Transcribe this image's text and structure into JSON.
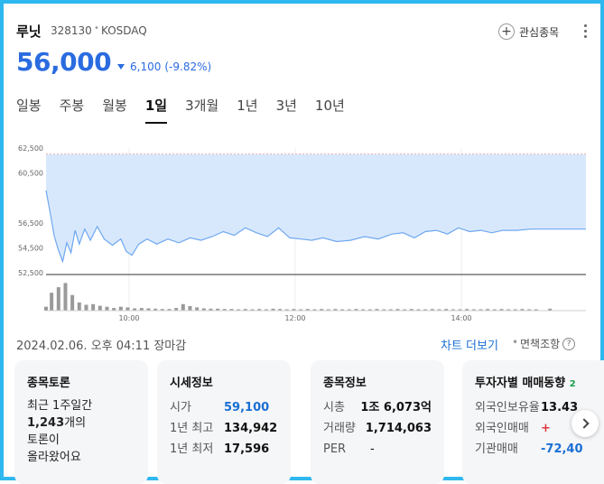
{
  "header": {
    "name": "루닛",
    "code": "328130",
    "separator": "•",
    "market": "KOSDAQ",
    "fav_label": "관심종목",
    "fav_icon": "plus-circle-icon",
    "more_icon": "more-vertical-icon"
  },
  "price": {
    "current": "56,000",
    "change": "6,100",
    "change_pct": "(-9.82%)",
    "direction": "down",
    "color": "#2a6be0"
  },
  "tabs": [
    {
      "label": "일봉",
      "active": false
    },
    {
      "label": "주봉",
      "active": false
    },
    {
      "label": "월봉",
      "active": false
    },
    {
      "label": "1일",
      "active": true
    },
    {
      "label": "3개월",
      "active": false
    },
    {
      "label": "1년",
      "active": false
    },
    {
      "label": "3년",
      "active": false
    },
    {
      "label": "10년",
      "active": false
    }
  ],
  "chart_data": {
    "type": "area",
    "y_ticks": [
      "62,500",
      "60,500",
      "56,500",
      "54,500",
      "52,500"
    ],
    "x_ticks": [
      "10:00",
      "12:00",
      "14:00"
    ],
    "ylim": [
      52500,
      62500
    ],
    "upper_limit": 62000,
    "xlim": [
      "09:00",
      "15:30"
    ],
    "line_color": "#6fa8f0",
    "fill_color": "#d8e8fc",
    "price_series": [
      {
        "t": 0,
        "p": 59100
      },
      {
        "t": 3,
        "p": 57300
      },
      {
        "t": 6,
        "p": 55400
      },
      {
        "t": 9,
        "p": 54300
      },
      {
        "t": 12,
        "p": 53400
      },
      {
        "t": 15,
        "p": 54900
      },
      {
        "t": 18,
        "p": 54100
      },
      {
        "t": 21,
        "p": 55900
      },
      {
        "t": 24,
        "p": 54800
      },
      {
        "t": 28,
        "p": 56000
      },
      {
        "t": 32,
        "p": 55100
      },
      {
        "t": 37,
        "p": 56200
      },
      {
        "t": 42,
        "p": 55200
      },
      {
        "t": 48,
        "p": 54700
      },
      {
        "t": 54,
        "p": 55200
      },
      {
        "t": 58,
        "p": 54200
      },
      {
        "t": 62,
        "p": 53900
      },
      {
        "t": 67,
        "p": 54800
      },
      {
        "t": 73,
        "p": 55200
      },
      {
        "t": 80,
        "p": 54800
      },
      {
        "t": 88,
        "p": 55200
      },
      {
        "t": 96,
        "p": 54900
      },
      {
        "t": 104,
        "p": 55300
      },
      {
        "t": 112,
        "p": 55100
      },
      {
        "t": 120,
        "p": 55400
      },
      {
        "t": 128,
        "p": 55800
      },
      {
        "t": 136,
        "p": 55500
      },
      {
        "t": 144,
        "p": 56100
      },
      {
        "t": 152,
        "p": 55700
      },
      {
        "t": 160,
        "p": 55400
      },
      {
        "t": 168,
        "p": 56100
      },
      {
        "t": 176,
        "p": 55300
      },
      {
        "t": 184,
        "p": 55200
      },
      {
        "t": 192,
        "p": 55100
      },
      {
        "t": 200,
        "p": 55300
      },
      {
        "t": 210,
        "p": 55000
      },
      {
        "t": 220,
        "p": 55100
      },
      {
        "t": 230,
        "p": 55400
      },
      {
        "t": 240,
        "p": 55200
      },
      {
        "t": 250,
        "p": 55600
      },
      {
        "t": 258,
        "p": 55700
      },
      {
        "t": 266,
        "p": 55300
      },
      {
        "t": 274,
        "p": 55800
      },
      {
        "t": 282,
        "p": 55900
      },
      {
        "t": 290,
        "p": 55600
      },
      {
        "t": 298,
        "p": 56100
      },
      {
        "t": 306,
        "p": 55800
      },
      {
        "t": 314,
        "p": 55900
      },
      {
        "t": 322,
        "p": 55700
      },
      {
        "t": 330,
        "p": 55900
      },
      {
        "t": 340,
        "p": 55900
      },
      {
        "t": 350,
        "p": 56000
      },
      {
        "t": 360,
        "p": 56000
      },
      {
        "t": 370,
        "p": 56000
      },
      {
        "t": 380,
        "p": 56000
      },
      {
        "t": 390,
        "p": 56000
      }
    ],
    "volume_series": [
      {
        "t": 0,
        "v": 0.12
      },
      {
        "t": 4,
        "v": 0.55
      },
      {
        "t": 9,
        "v": 0.72
      },
      {
        "t": 14,
        "v": 0.85
      },
      {
        "t": 19,
        "v": 0.48
      },
      {
        "t": 24,
        "v": 0.25
      },
      {
        "t": 29,
        "v": 0.18
      },
      {
        "t": 34,
        "v": 0.2
      },
      {
        "t": 39,
        "v": 0.15
      },
      {
        "t": 44,
        "v": 0.12
      },
      {
        "t": 49,
        "v": 0.08
      },
      {
        "t": 54,
        "v": 0.12
      },
      {
        "t": 59,
        "v": 0.1
      },
      {
        "t": 64,
        "v": 0.07
      },
      {
        "t": 69,
        "v": 0.08
      },
      {
        "t": 74,
        "v": 0.07
      },
      {
        "t": 79,
        "v": 0.06
      },
      {
        "t": 84,
        "v": 0.05
      },
      {
        "t": 89,
        "v": 0.05
      },
      {
        "t": 94,
        "v": 0.08
      },
      {
        "t": 99,
        "v": 0.2
      },
      {
        "t": 104,
        "v": 0.14
      },
      {
        "t": 109,
        "v": 0.1
      },
      {
        "t": 114,
        "v": 0.07
      },
      {
        "t": 119,
        "v": 0.06
      },
      {
        "t": 124,
        "v": 0.06
      },
      {
        "t": 129,
        "v": 0.05
      },
      {
        "t": 134,
        "v": 0.05
      },
      {
        "t": 139,
        "v": 0.04
      },
      {
        "t": 144,
        "v": 0.05
      },
      {
        "t": 149,
        "v": 0.04
      },
      {
        "t": 154,
        "v": 0.05
      },
      {
        "t": 159,
        "v": 0.04
      },
      {
        "t": 164,
        "v": 0.06
      },
      {
        "t": 169,
        "v": 0.05
      },
      {
        "t": 174,
        "v": 0.04
      },
      {
        "t": 179,
        "v": 0.05
      },
      {
        "t": 184,
        "v": 0.04
      },
      {
        "t": 189,
        "v": 0.05
      },
      {
        "t": 194,
        "v": 0.04
      },
      {
        "t": 199,
        "v": 0.05
      },
      {
        "t": 204,
        "v": 0.04
      },
      {
        "t": 209,
        "v": 0.05
      },
      {
        "t": 214,
        "v": 0.04
      },
      {
        "t": 219,
        "v": 0.04
      },
      {
        "t": 224,
        "v": 0.05
      },
      {
        "t": 229,
        "v": 0.04
      },
      {
        "t": 234,
        "v": 0.04
      },
      {
        "t": 239,
        "v": 0.05
      },
      {
        "t": 244,
        "v": 0.04
      },
      {
        "t": 249,
        "v": 0.04
      },
      {
        "t": 254,
        "v": 0.05
      },
      {
        "t": 259,
        "v": 0.04
      },
      {
        "t": 264,
        "v": 0.05
      },
      {
        "t": 269,
        "v": 0.04
      },
      {
        "t": 274,
        "v": 0.04
      },
      {
        "t": 279,
        "v": 0.05
      },
      {
        "t": 284,
        "v": 0.04
      },
      {
        "t": 289,
        "v": 0.05
      },
      {
        "t": 294,
        "v": 0.04
      },
      {
        "t": 299,
        "v": 0.04
      },
      {
        "t": 304,
        "v": 0.05
      },
      {
        "t": 309,
        "v": 0.04
      },
      {
        "t": 314,
        "v": 0.04
      },
      {
        "t": 319,
        "v": 0.05
      },
      {
        "t": 324,
        "v": 0.04
      },
      {
        "t": 329,
        "v": 0.05
      },
      {
        "t": 334,
        "v": 0.04
      },
      {
        "t": 339,
        "v": 0.04
      },
      {
        "t": 344,
        "v": 0.05
      },
      {
        "t": 349,
        "v": 0.04
      },
      {
        "t": 354,
        "v": 0.04
      },
      {
        "t": 364,
        "v": 0.06
      }
    ]
  },
  "chart_footer": {
    "timestamp": "2024.02.06. 오후 04:11 장마감",
    "chart_more": "차트 더보기",
    "separator": "•",
    "disclaimer": "면책조항",
    "help_icon": "help-circle-icon"
  },
  "cards": {
    "discussion": {
      "title": "종목토론",
      "line1": "최근 1주일간",
      "count": "1,243",
      "line2_suffix": "개의",
      "line3": "토론이",
      "line4": "올라왔어요"
    },
    "market": {
      "title": "시세정보",
      "rows": [
        {
          "label": "시가",
          "value": "59,100",
          "color": "blue"
        },
        {
          "label": "1년 최고",
          "value": "134,942",
          "color": "default"
        },
        {
          "label": "1년 최저",
          "value": "17,596",
          "color": "default"
        }
      ]
    },
    "info": {
      "title": "종목정보",
      "rows": [
        {
          "label": "시총",
          "value": "1조 6,073억"
        },
        {
          "label": "거래량",
          "value": "1,714,063"
        },
        {
          "label": "PER",
          "value": "-"
        }
      ]
    },
    "investor": {
      "title": "투자자별 매매동향",
      "badge": "2",
      "rows": [
        {
          "label": "외국인보유율",
          "value": "13.43"
        },
        {
          "label": "외국인매매",
          "value": "+"
        },
        {
          "label": "기관매매",
          "value": "-72,40"
        }
      ]
    }
  },
  "nav": {
    "next_icon": "chevron-right-icon"
  }
}
